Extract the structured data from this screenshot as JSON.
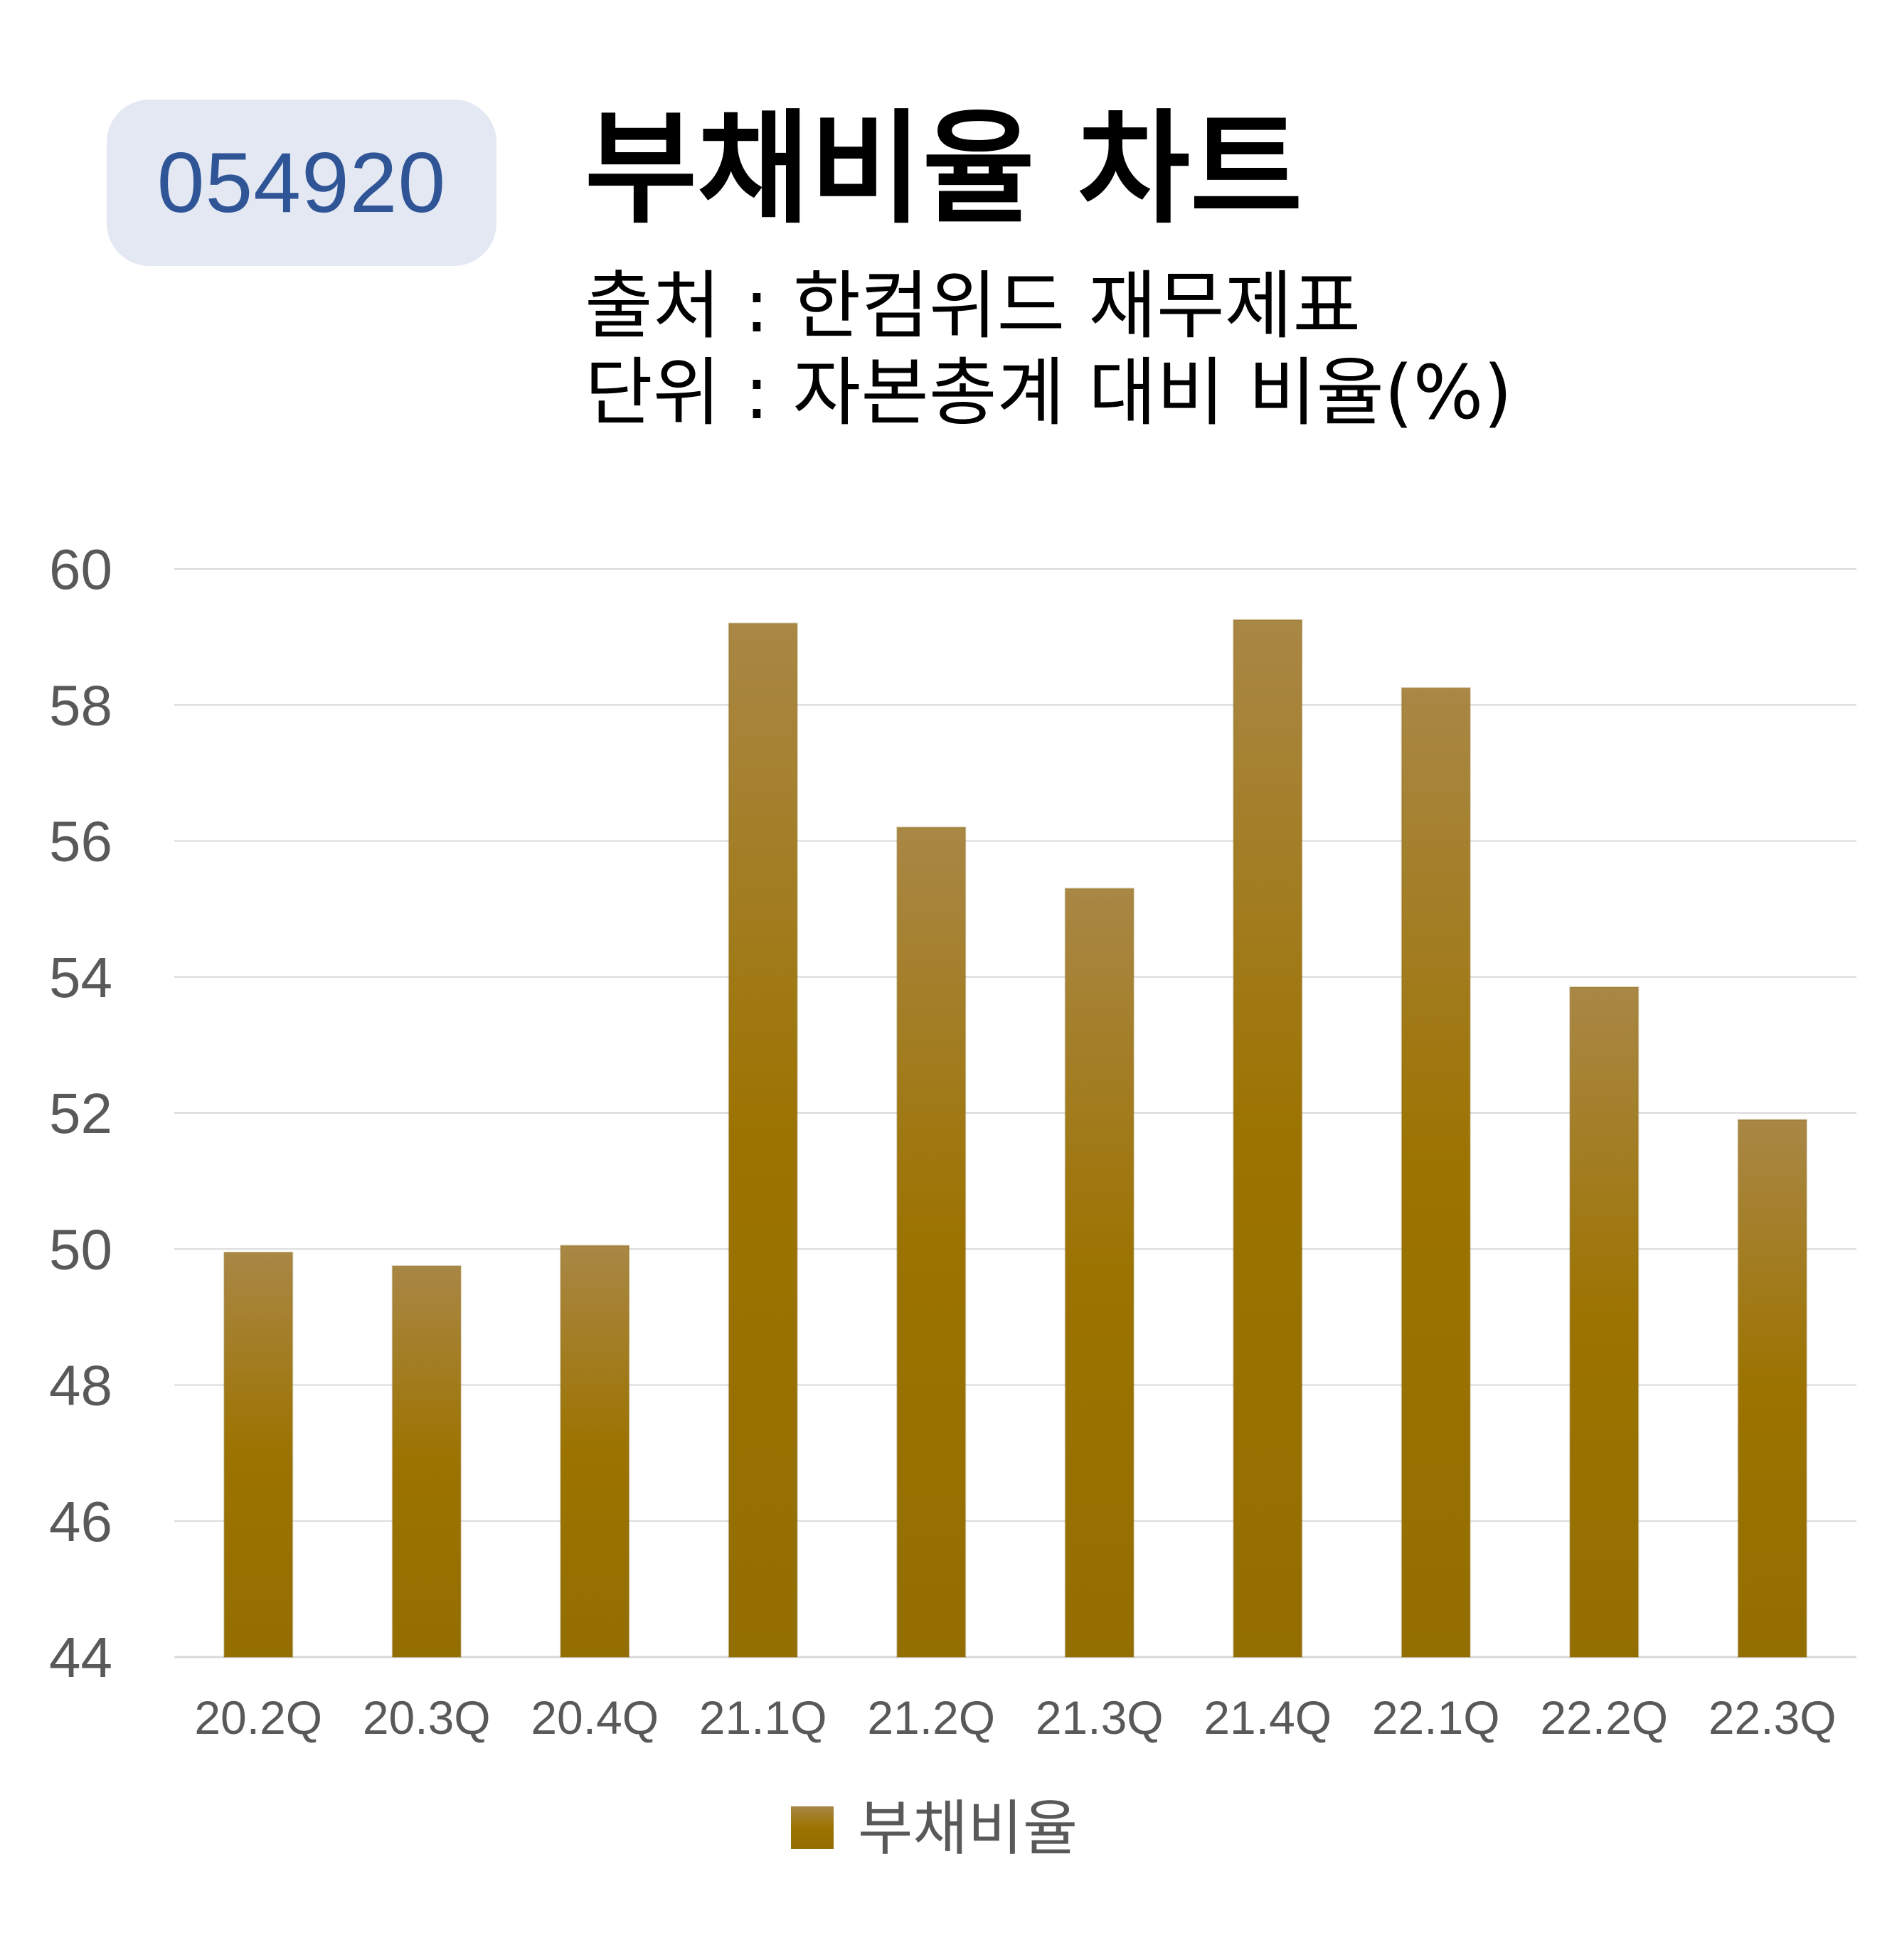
{
  "badge": {
    "code": "054920"
  },
  "header": {
    "title": "부채비율 차트",
    "source": "출처 : 한컴위드 재무제표",
    "unit": "단위 : 자본총계 대비 비율(%)"
  },
  "chart_data": {
    "type": "bar",
    "categories": [
      "20.2Q",
      "20.3Q",
      "20.4Q",
      "21.1Q",
      "21.2Q",
      "21.3Q",
      "21.4Q",
      "22.1Q",
      "22.2Q",
      "22.3Q"
    ],
    "series": [
      {
        "name": "부채비율",
        "values": [
          49.95,
          49.75,
          50.05,
          59.2,
          56.2,
          55.3,
          59.25,
          58.25,
          53.85,
          51.9
        ]
      }
    ],
    "yticks": [
      44,
      46,
      48,
      50,
      52,
      54,
      56,
      58,
      60
    ],
    "ylim": [
      44,
      60
    ],
    "grid": true,
    "legend": "bottom",
    "colors": {
      "bar_top": "#a98745",
      "bar_mid": "#9c7300",
      "bar_bottom": "#936e00",
      "grid": "#d9d9d9"
    }
  }
}
